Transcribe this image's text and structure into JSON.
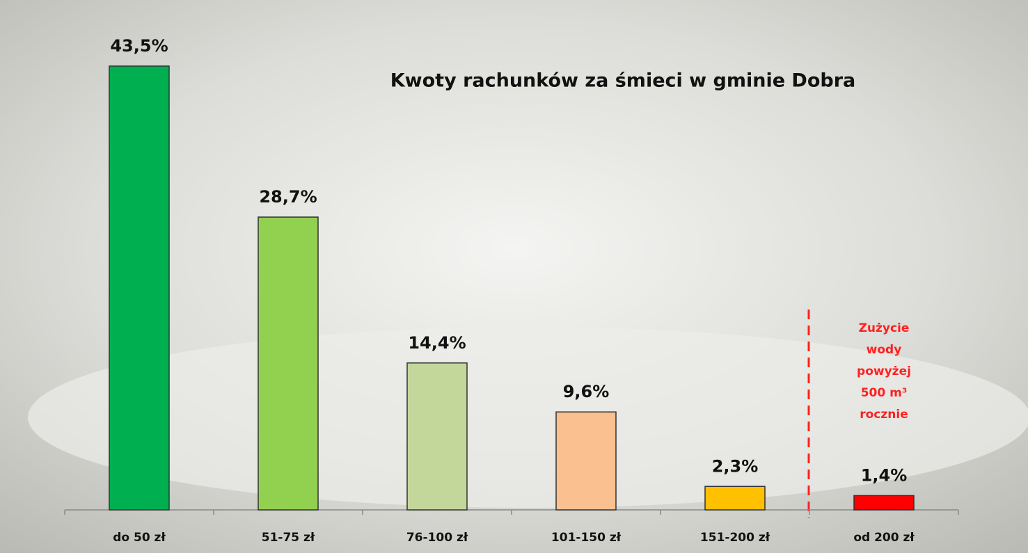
{
  "chart_data": {
    "type": "bar",
    "title": "Kwoty rachunków za śmieci w gminie Dobra",
    "categories": [
      "do 50 zł",
      "51-75 zł",
      "76-100 zł",
      "101-150 zł",
      "151-200 zł",
      "od 200 zł"
    ],
    "values": [
      43.5,
      28.7,
      14.4,
      9.6,
      2.3,
      1.4
    ],
    "value_labels": [
      "43,5%",
      "28,7%",
      "14,4%",
      "9,6%",
      "2,3%",
      "1,4%"
    ],
    "colors": [
      "#00b050",
      "#92d050",
      "#c4d79b",
      "#fac090",
      "#ffc000",
      "#ff0000"
    ],
    "annotation": [
      "Zużycie",
      "wody",
      "powyżej",
      "500 m³",
      "rocznie"
    ],
    "annotation_color": "#ff2020"
  }
}
